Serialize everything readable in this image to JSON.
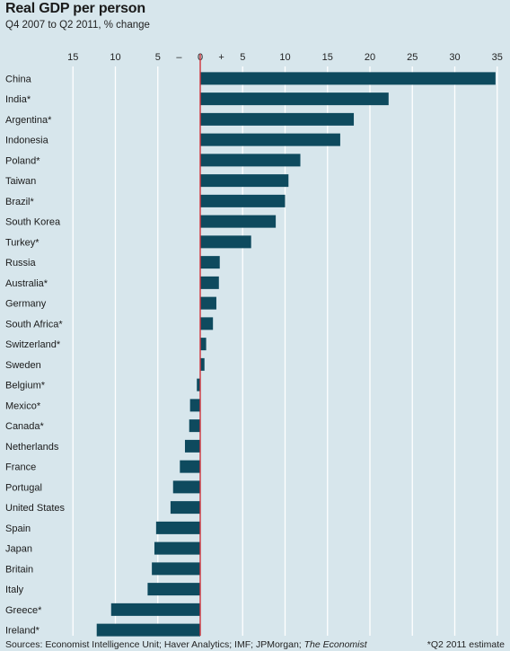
{
  "header": {
    "title": "Real GDP per person",
    "subtitle": "Q4 2007 to Q2 2011, % change"
  },
  "footer": {
    "sources_prefix": "Sources: Economist Intelligence Unit; Haver Analytics; IMF; JPMorgan; ",
    "sources_italic": "The Economist",
    "note": "*Q2 2011 estimate"
  },
  "colors": {
    "background": "#d7e6ec",
    "bar": "#0e4a5e",
    "zero_line": "#d0343c",
    "grid": "#ffffff"
  },
  "chart_data": {
    "type": "bar",
    "orientation": "horizontal",
    "title": "Real GDP per person",
    "subtitle": "Q4 2007 to Q2 2011, % change",
    "xlim": [
      -15,
      35
    ],
    "x_ticks": [
      "15",
      "10",
      "5",
      "–",
      "0",
      "+",
      "5",
      "10",
      "15",
      "20",
      "25",
      "30",
      "35"
    ],
    "grid": true,
    "categories": [
      "China",
      "India*",
      "Argentina*",
      "Indonesia",
      "Poland*",
      "Taiwan",
      "Brazil*",
      "South Korea",
      "Turkey*",
      "Russia",
      "Australia*",
      "Germany",
      "South Africa*",
      "Switzerland*",
      "Sweden",
      "Belgium*",
      "Mexico*",
      "Canada*",
      "Netherlands",
      "France",
      "Portugal",
      "United States",
      "Spain",
      "Japan",
      "Britain",
      "Italy",
      "Greece*",
      "Ireland*"
    ],
    "values": [
      34.8,
      22.2,
      18.1,
      16.5,
      11.8,
      10.4,
      10.0,
      8.9,
      6.0,
      2.3,
      2.2,
      1.9,
      1.5,
      0.7,
      0.5,
      -0.4,
      -1.2,
      -1.3,
      -1.8,
      -2.4,
      -3.2,
      -3.5,
      -5.2,
      -5.4,
      -5.7,
      -6.2,
      -10.5,
      -12.2
    ]
  }
}
